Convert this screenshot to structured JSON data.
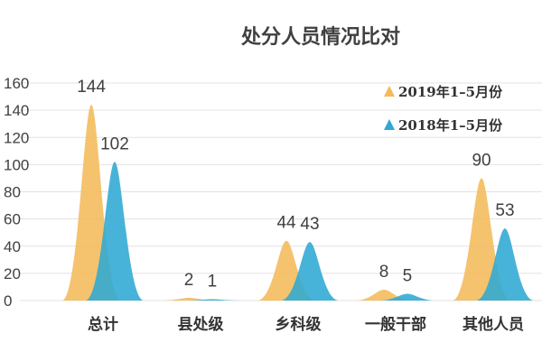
{
  "chart_data": {
    "type": "area",
    "title": "处分人员情况比对",
    "categories": [
      "总计",
      "县处级",
      "乡科级",
      "一般干部",
      "其他人员"
    ],
    "series": [
      {
        "name": "2019年1–5月份",
        "values": [
          144,
          2,
          44,
          8,
          90
        ],
        "color": "#F4B95A"
      },
      {
        "name": "2018年1–5月份",
        "values": [
          102,
          1,
          43,
          5,
          53
        ],
        "color": "#2FA8D3"
      }
    ],
    "ylim": [
      0,
      160
    ],
    "yticks": [
      0,
      20,
      40,
      60,
      80,
      100,
      120,
      140,
      160
    ],
    "grid": true,
    "legend_position": "top-right",
    "data_labels": true,
    "xlabel": "",
    "ylabel": ""
  }
}
